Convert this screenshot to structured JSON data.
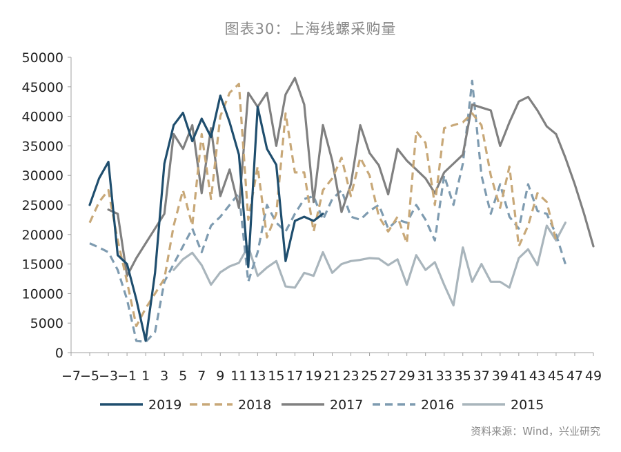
{
  "chart_data": {
    "type": "line",
    "title": "图表30：上海线螺采购量",
    "source": "资料来源：Wind，兴业研究",
    "xlabel": "",
    "ylabel": "",
    "xlim": [
      -7,
      49
    ],
    "ylim": [
      0,
      50000
    ],
    "x_ticks": [
      -7,
      -5,
      -3,
      -1,
      1,
      3,
      5,
      7,
      9,
      11,
      13,
      15,
      17,
      19,
      21,
      23,
      25,
      27,
      29,
      31,
      33,
      35,
      37,
      39,
      41,
      43,
      45,
      47,
      49
    ],
    "y_ticks": [
      0,
      5000,
      10000,
      15000,
      20000,
      25000,
      30000,
      35000,
      40000,
      45000,
      50000
    ],
    "grid": false,
    "legend_position": "bottom",
    "series": [
      {
        "name": "2019",
        "color": "#1f4e6e",
        "dash": "solid",
        "x": [
          -5,
          -4,
          -3,
          -2,
          -1,
          0,
          1,
          2,
          3,
          4,
          5,
          6,
          7,
          8,
          9,
          10,
          11,
          12,
          13,
          14,
          15,
          16,
          17,
          18,
          19,
          20
        ],
        "values": [
          25000,
          29500,
          32300,
          16500,
          15000,
          9000,
          2000,
          13500,
          32000,
          38500,
          40600,
          35800,
          39600,
          36500,
          43500,
          39000,
          33500,
          14500,
          41600,
          34500,
          31800,
          15500,
          22300,
          23000,
          22300,
          23500
        ]
      },
      {
        "name": "2018",
        "color": "#c8a878",
        "dash": "dashed",
        "x": [
          -5,
          -4,
          -3,
          -2,
          -1,
          0,
          1,
          2,
          3,
          4,
          5,
          6,
          7,
          8,
          9,
          10,
          11,
          12,
          13,
          14,
          15,
          16,
          17,
          18,
          19,
          20,
          21,
          22,
          23,
          24,
          25,
          26,
          27,
          28,
          29,
          30,
          31,
          32,
          33,
          34,
          35,
          36,
          37,
          38,
          39,
          40,
          41,
          42,
          43,
          44,
          45
        ],
        "values": [
          22000,
          25500,
          27500,
          19000,
          12000,
          4500,
          7500,
          10000,
          12500,
          21500,
          27500,
          21500,
          37000,
          26000,
          40000,
          44000,
          45500,
          22500,
          31500,
          19500,
          23500,
          40500,
          30500,
          30500,
          20500,
          27500,
          29500,
          33000,
          26500,
          33000,
          30000,
          23000,
          20500,
          23000,
          18500,
          37500,
          35500,
          25000,
          38000,
          38500,
          39000,
          40500,
          38500,
          30000,
          24500,
          31500,
          18000,
          21500,
          27000,
          25500,
          19000
        ]
      },
      {
        "name": "2017",
        "color": "#808080",
        "dash": "solid",
        "x": [
          -3,
          -2,
          -1,
          0,
          1,
          2,
          3,
          4,
          5,
          6,
          7,
          8,
          9,
          10,
          11,
          12,
          13,
          14,
          15,
          16,
          17,
          18,
          19,
          20,
          21,
          22,
          23,
          24,
          25,
          26,
          27,
          28,
          29,
          30,
          31,
          32,
          33,
          34,
          35,
          36,
          37,
          38,
          39,
          40,
          41,
          42,
          43,
          44,
          45,
          46,
          47,
          48,
          49
        ],
        "values": [
          24200,
          23500,
          13000,
          16000,
          18500,
          21000,
          23500,
          37000,
          34500,
          38500,
          27000,
          38000,
          26500,
          31000,
          24500,
          44000,
          41600,
          44000,
          35000,
          43700,
          46500,
          42000,
          25500,
          38500,
          32500,
          23800,
          28500,
          38500,
          33800,
          31700,
          26800,
          34500,
          32500,
          31000,
          29500,
          27000,
          30500,
          32000,
          33500,
          42000,
          41500,
          41000,
          35000,
          39000,
          42500,
          43300,
          41000,
          38300,
          37000,
          33000,
          28500,
          23500,
          18000
        ]
      },
      {
        "name": "2016",
        "color": "#7e9bb0",
        "dash": "dashed",
        "x": [
          -5,
          -4,
          -3,
          -2,
          -1,
          0,
          1,
          2,
          3,
          4,
          5,
          6,
          7,
          8,
          9,
          10,
          11,
          12,
          13,
          14,
          15,
          16,
          17,
          18,
          19,
          20,
          21,
          22,
          23,
          24,
          25,
          26,
          27,
          28,
          29,
          30,
          31,
          32,
          33,
          34,
          35,
          36,
          37,
          38,
          39,
          40,
          41,
          42,
          43,
          44,
          45,
          46
        ],
        "values": [
          18500,
          17800,
          17000,
          14000,
          9000,
          2000,
          1800,
          3500,
          12000,
          15000,
          18000,
          21000,
          17000,
          21500,
          23000,
          25000,
          27000,
          12000,
          17000,
          25000,
          22000,
          20500,
          23500,
          26000,
          26500,
          22500,
          26000,
          27500,
          23000,
          22500,
          24000,
          25000,
          21000,
          22500,
          22000,
          25000,
          22500,
          19000,
          30000,
          25000,
          32000,
          46000,
          30000,
          23500,
          28500,
          23000,
          21000,
          28500,
          24000,
          23500,
          20000,
          15000
        ]
      },
      {
        "name": "2015",
        "color": "#a9b5bc",
        "dash": "solid",
        "x": [
          4,
          5,
          6,
          7,
          8,
          9,
          10,
          11,
          12,
          13,
          14,
          15,
          16,
          17,
          18,
          19,
          20,
          21,
          22,
          23,
          24,
          25,
          26,
          27,
          28,
          29,
          30,
          31,
          32,
          33,
          34,
          35,
          36,
          37,
          38,
          39,
          40,
          41,
          42,
          43,
          44,
          45,
          46
        ],
        "values": [
          14000,
          15800,
          16900,
          14800,
          11500,
          13600,
          14600,
          15200,
          18000,
          13000,
          14400,
          15500,
          11200,
          11000,
          13500,
          13000,
          17000,
          13500,
          15000,
          15500,
          15700,
          16000,
          15900,
          14800,
          15800,
          11500,
          16500,
          14000,
          15300,
          11500,
          8000,
          17800,
          12000,
          15000,
          12000,
          12000,
          11000,
          16000,
          17500,
          14800,
          21500,
          19000,
          22000
        ]
      }
    ]
  }
}
